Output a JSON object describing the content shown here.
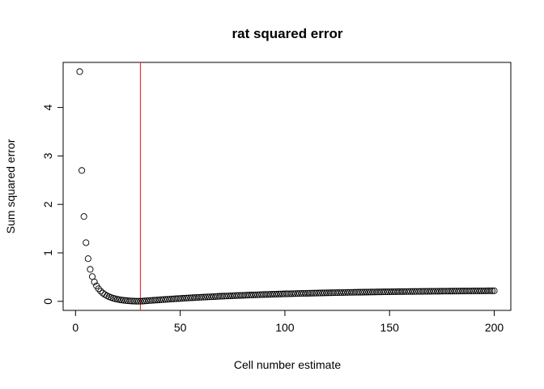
{
  "chart_data": {
    "type": "scatter",
    "title": "rat squared error",
    "x_label": "Cell number estimate",
    "y_label": "Sum squared error",
    "x": [
      2,
      3,
      4,
      5,
      6,
      7,
      8,
      9,
      10,
      11,
      12,
      13,
      14,
      15,
      16,
      17,
      18,
      19,
      20,
      21,
      22,
      23,
      24,
      25,
      26,
      27,
      28,
      29,
      30,
      31,
      32,
      33,
      34,
      35,
      36,
      37,
      38,
      39,
      40,
      41,
      42,
      43,
      44,
      45,
      46,
      47,
      48,
      49,
      50,
      51,
      52,
      53,
      54,
      55,
      56,
      57,
      58,
      59,
      60,
      61,
      62,
      63,
      64,
      65,
      66,
      67,
      68,
      69,
      70,
      71,
      72,
      73,
      74,
      75,
      76,
      77,
      78,
      79,
      80,
      81,
      82,
      83,
      84,
      85,
      86,
      87,
      88,
      89,
      90,
      91,
      92,
      93,
      94,
      95,
      96,
      97,
      98,
      99,
      100,
      101,
      102,
      103,
      104,
      105,
      106,
      107,
      108,
      109,
      110,
      111,
      112,
      113,
      114,
      115,
      116,
      117,
      118,
      119,
      120,
      121,
      122,
      123,
      124,
      125,
      126,
      127,
      128,
      129,
      130,
      131,
      132,
      133,
      134,
      135,
      136,
      137,
      138,
      139,
      140,
      141,
      142,
      143,
      144,
      145,
      146,
      147,
      148,
      149,
      150,
      151,
      152,
      153,
      154,
      155,
      156,
      157,
      158,
      159,
      160,
      161,
      162,
      163,
      164,
      165,
      166,
      167,
      168,
      169,
      170,
      171,
      172,
      173,
      174,
      175,
      176,
      177,
      178,
      179,
      180,
      181,
      182,
      183,
      184,
      185,
      186,
      187,
      188,
      189,
      190,
      191,
      192,
      193,
      194,
      195,
      196,
      197,
      198,
      199,
      200
    ],
    "values": [
      4.74,
      2.7,
      1.75,
      1.21,
      0.88,
      0.66,
      0.51,
      0.4,
      0.32,
      0.26,
      0.21,
      0.17,
      0.14,
      0.115,
      0.095,
      0.078,
      0.064,
      0.052,
      0.042,
      0.034,
      0.027,
      0.021,
      0.016,
      0.012,
      0.009,
      0.006,
      0.004,
      0.003,
      0.002,
      0.002,
      0.005,
      0.008,
      0.011,
      0.015,
      0.018,
      0.021,
      0.024,
      0.027,
      0.03,
      0.034,
      0.036,
      0.039,
      0.042,
      0.045,
      0.048,
      0.051,
      0.054,
      0.057,
      0.059,
      0.062,
      0.065,
      0.067,
      0.07,
      0.072,
      0.075,
      0.077,
      0.08,
      0.082,
      0.084,
      0.087,
      0.089,
      0.091,
      0.093,
      0.095,
      0.097,
      0.099,
      0.102,
      0.104,
      0.106,
      0.108,
      0.11,
      0.112,
      0.113,
      0.115,
      0.117,
      0.119,
      0.121,
      0.122,
      0.124,
      0.126,
      0.128,
      0.129,
      0.131,
      0.132,
      0.134,
      0.135,
      0.137,
      0.139,
      0.14,
      0.142,
      0.143,
      0.144,
      0.146,
      0.147,
      0.148,
      0.15,
      0.151,
      0.152,
      0.154,
      0.155,
      0.156,
      0.157,
      0.158,
      0.16,
      0.161,
      0.162,
      0.163,
      0.164,
      0.165,
      0.166,
      0.167,
      0.168,
      0.169,
      0.17,
      0.171,
      0.172,
      0.173,
      0.174,
      0.175,
      0.176,
      0.177,
      0.178,
      0.179,
      0.18,
      0.181,
      0.181,
      0.182,
      0.183,
      0.184,
      0.185,
      0.185,
      0.186,
      0.187,
      0.188,
      0.188,
      0.189,
      0.19,
      0.19,
      0.191,
      0.192,
      0.192,
      0.193,
      0.194,
      0.194,
      0.195,
      0.196,
      0.196,
      0.197,
      0.197,
      0.198,
      0.199,
      0.199,
      0.2,
      0.2,
      0.201,
      0.201,
      0.202,
      0.202,
      0.203,
      0.203,
      0.203,
      0.204,
      0.204,
      0.205,
      0.205,
      0.206,
      0.206,
      0.207,
      0.207,
      0.208,
      0.208,
      0.208,
      0.209,
      0.209,
      0.21,
      0.21,
      0.21,
      0.211,
      0.211,
      0.212,
      0.212,
      0.212,
      0.213,
      0.213,
      0.213,
      0.214,
      0.214,
      0.214,
      0.215,
      0.215,
      0.215,
      0.216,
      0.216,
      0.216,
      0.216,
      0.217,
      0.217,
      0.217,
      0.218
    ],
    "color": "#000000",
    "vline": {
      "x": 31,
      "color": "#e0383a"
    },
    "xlim": [
      -5.92,
      207.92
    ],
    "xticks": [
      0,
      50,
      100,
      150,
      200
    ],
    "ylim": [
      -0.187,
      4.93
    ],
    "yticks": [
      0,
      1,
      2,
      3,
      4
    ]
  }
}
